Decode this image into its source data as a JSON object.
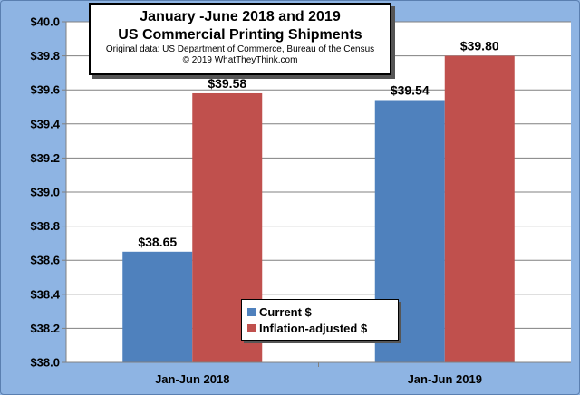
{
  "chart_data": {
    "type": "bar",
    "title_lines": [
      "January -June 2018 and 2019",
      "US Commercial Printing Shipments"
    ],
    "subtitle_lines": [
      "Original data: US Department of Commerce, Bureau of the Census",
      "© 2019 WhatTheyThink.com"
    ],
    "categories": [
      "Jan-Jun 2018",
      "Jan-Jun 2019"
    ],
    "series": [
      {
        "name": "Current $",
        "values": [
          38.65,
          39.54
        ],
        "labels": [
          "$38.65",
          "$39.54"
        ],
        "color": "#4f81bd"
      },
      {
        "name": "Inflation-adjusted $",
        "values": [
          39.58,
          39.8
        ],
        "labels": [
          "$39.58",
          "$39.80"
        ],
        "color": "#c0504d"
      }
    ],
    "ylim": [
      38.0,
      40.0
    ],
    "yticks": [
      38.0,
      38.2,
      38.4,
      38.6,
      38.8,
      39.0,
      39.2,
      39.4,
      39.6,
      39.8,
      40.0
    ],
    "ytick_labels": [
      "$38.0",
      "$38.2",
      "$38.4",
      "$38.6",
      "$38.8",
      "$39.0",
      "$39.2",
      "$39.4",
      "$39.6",
      "$39.8",
      "$40.0"
    ],
    "grid": true,
    "legend_position": "bottom-center",
    "colors": {
      "plot_bg": "#ffffff",
      "page_bg": "#8eb4e3",
      "grid": "#808080"
    }
  }
}
